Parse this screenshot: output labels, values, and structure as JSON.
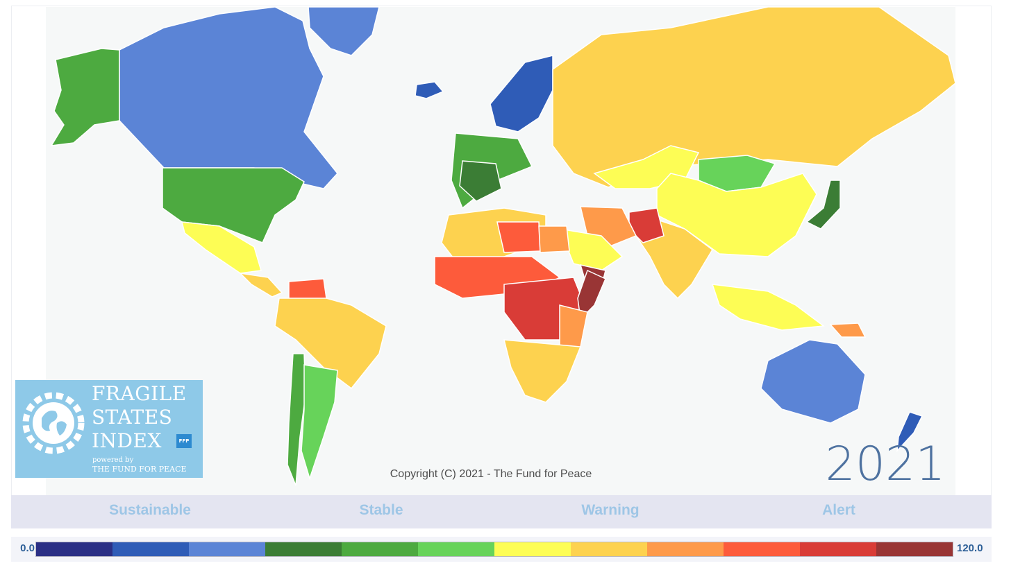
{
  "map": {
    "legend_colors": [
      "#2b2f85",
      "#2f5cb7",
      "#5b84d6",
      "#3b7d35",
      "#4daa40",
      "#67d35a",
      "#fdfd55",
      "#fdd24f",
      "#fe9a4a",
      "#fd5b3b",
      "#d93c37",
      "#993535"
    ],
    "country_colors": {
      "canada": "#5b84d6",
      "alaska": "#4daa40",
      "usa": "#4daa40",
      "greenland": "#5b84d6",
      "mexico": "#fdfd55",
      "central_america": "#fdd24f",
      "venezuela": "#fd5b3b",
      "brazil": "#fdd24f",
      "chile": "#4daa40",
      "argentina": "#67d35a",
      "iceland": "#2f5cb7",
      "nordics": "#2f5cb7",
      "western_europe": "#4daa40",
      "france": "#3b7d35",
      "russia": "#fdd24f",
      "kazakhstan": "#fdfd55",
      "mongolia": "#67d35a",
      "china": "#fdfd55",
      "japan": "#3b7d35",
      "india": "#fdd24f",
      "afghanistan": "#d93c37",
      "iran": "#fe9a4a",
      "saudi": "#fdfd55",
      "yemen": "#993535",
      "north_africa": "#fdd24f",
      "libya": "#fd5b3b",
      "egypt": "#fe9a4a",
      "sahel": "#fd5b3b",
      "central_africa": "#d93c37",
      "somalia": "#993535",
      "east_africa": "#fe9a4a",
      "southern_africa": "#fdd24f",
      "southeast_asia": "#fdfd55",
      "png": "#fe9a4a",
      "australia": "#5b84d6",
      "new_zealand": "#2f5cb7"
    }
  },
  "logo": {
    "line1": "FRAGILE",
    "line2": "STATES",
    "line3": "INDEX",
    "ffp_badge": "FFP",
    "powered_by": "powered by",
    "org": "THE FUND FOR PEACE"
  },
  "copyright": "Copyright (C) 2021 - The Fund for Peace",
  "year": "2021",
  "categories": [
    "Sustainable",
    "Stable",
    "Warning",
    "Alert"
  ],
  "scale": {
    "min": "0.0",
    "max": "120.0"
  }
}
